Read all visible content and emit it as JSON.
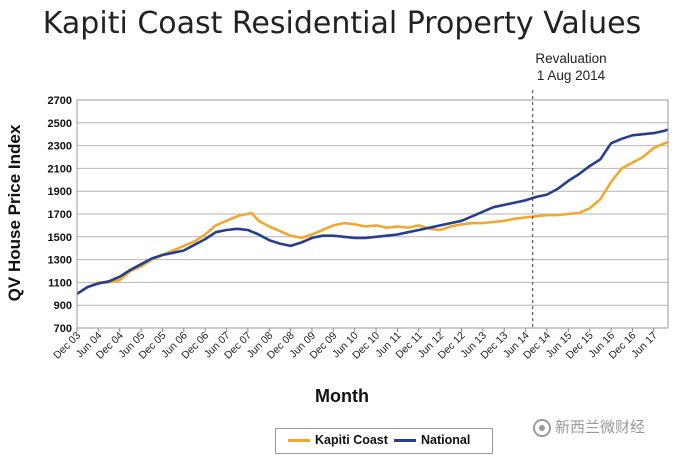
{
  "chart_data": {
    "type": "line",
    "title": "Kapiti Coast Residential Property Values",
    "xlabel": "Month",
    "ylabel": "QV House Price Index",
    "ylim": [
      700,
      2700
    ],
    "yticks": [
      700,
      900,
      1100,
      1300,
      1500,
      1700,
      1900,
      2100,
      2300,
      2500,
      2700
    ],
    "xlim": [
      0,
      166
    ],
    "x_tick_labels": [
      "Dec 03",
      "Jun 04",
      "Dec 04",
      "Jun 05",
      "Dec 05",
      "Jun 06",
      "Dec 06",
      "Jun 07",
      "Dec 07",
      "Jun 08",
      "Dec 08",
      "Jun 09",
      "Dec 09",
      "Jun 10",
      "Dec 10",
      "Jun 11",
      "Dec 11",
      "Jun 12",
      "Dec 12",
      "Jun 13",
      "Dec 13",
      "Jun 14",
      "Dec 14",
      "Jun 15",
      "Dec 15",
      "Jun 16",
      "Dec 16",
      "Jun 17"
    ],
    "x_tick_positions": [
      0,
      6,
      12,
      18,
      24,
      30,
      36,
      42,
      48,
      54,
      60,
      66,
      72,
      78,
      84,
      90,
      96,
      102,
      108,
      114,
      120,
      126,
      132,
      138,
      144,
      150,
      156,
      162
    ],
    "series": [
      {
        "name": "Kapiti Coast",
        "color": "#f0a830",
        "x": [
          0,
          3,
          6,
          9,
          12,
          15,
          18,
          21,
          24,
          27,
          30,
          33,
          36,
          39,
          42,
          45,
          46,
          48,
          49,
          51,
          54,
          57,
          60,
          63,
          66,
          69,
          72,
          75,
          78,
          81,
          84,
          87,
          90,
          93,
          96,
          99,
          102,
          105,
          108,
          111,
          114,
          117,
          120,
          123,
          126,
          129,
          132,
          135,
          138,
          141,
          144,
          147,
          150,
          153,
          156,
          159,
          162,
          165,
          166
        ],
        "values": [
          1000,
          1060,
          1100,
          1100,
          1120,
          1200,
          1240,
          1300,
          1340,
          1380,
          1420,
          1460,
          1520,
          1600,
          1640,
          1680,
          1690,
          1700,
          1710,
          1640,
          1590,
          1550,
          1510,
          1490,
          1520,
          1560,
          1600,
          1620,
          1610,
          1590,
          1600,
          1580,
          1590,
          1580,
          1600,
          1570,
          1560,
          1590,
          1610,
          1620,
          1620,
          1630,
          1640,
          1660,
          1670,
          1680,
          1690,
          1690,
          1700,
          1710,
          1750,
          1830,
          1980,
          2100,
          2150,
          2200,
          2280,
          2320,
          2330
        ]
      },
      {
        "name": "National",
        "color": "#243f8f",
        "x": [
          0,
          3,
          6,
          9,
          12,
          15,
          18,
          21,
          24,
          27,
          30,
          33,
          36,
          39,
          42,
          45,
          48,
          51,
          54,
          57,
          60,
          63,
          66,
          69,
          72,
          75,
          78,
          81,
          84,
          87,
          90,
          93,
          96,
          99,
          102,
          105,
          108,
          111,
          114,
          117,
          120,
          123,
          126,
          129,
          132,
          135,
          138,
          141,
          144,
          147,
          150,
          153,
          156,
          159,
          162,
          165,
          166
        ],
        "values": [
          1000,
          1060,
          1090,
          1110,
          1150,
          1210,
          1260,
          1310,
          1340,
          1360,
          1380,
          1430,
          1480,
          1540,
          1560,
          1570,
          1560,
          1520,
          1470,
          1440,
          1420,
          1450,
          1490,
          1510,
          1510,
          1500,
          1490,
          1490,
          1500,
          1510,
          1520,
          1540,
          1560,
          1580,
          1600,
          1620,
          1640,
          1680,
          1720,
          1760,
          1780,
          1800,
          1820,
          1850,
          1870,
          1920,
          1990,
          2050,
          2120,
          2180,
          2320,
          2360,
          2390,
          2400,
          2410,
          2430,
          2440
        ]
      }
    ],
    "reference_line": {
      "x": 128,
      "label_line1": "Revaluation",
      "label_line2": "1 Aug 2014"
    },
    "legend_position": "bottom-center"
  },
  "watermark": {
    "text": "新西兰微财经"
  }
}
